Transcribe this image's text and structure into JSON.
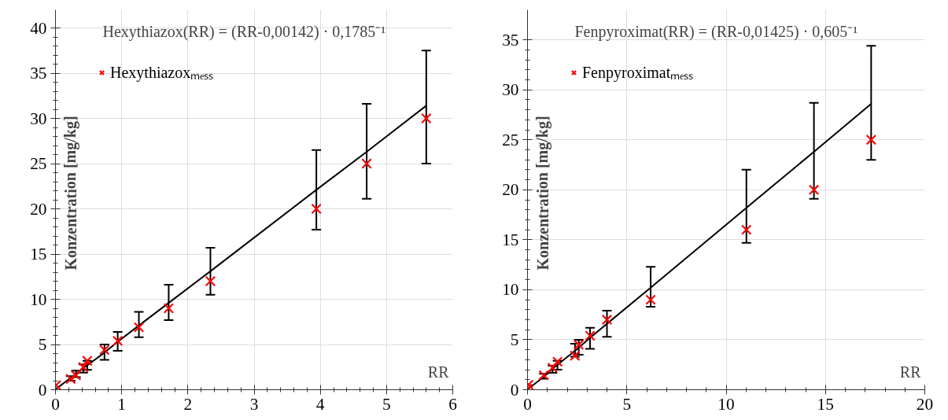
{
  "chart_data": [
    {
      "type": "scatter",
      "xlabel": "RR",
      "ylabel": "Konzentration [mg/kg]",
      "xlim": [
        0,
        6
      ],
      "ylim": [
        0,
        42
      ],
      "xticks": [
        0,
        1,
        2,
        3,
        4,
        5,
        6
      ],
      "yticks": [
        0,
        5,
        10,
        15,
        20,
        25,
        30,
        35,
        40
      ],
      "grid": true,
      "legend": "top left",
      "annotations": [
        "Hexythiazox(RR) = (RR-0,00142)  · 0,1785⁻¹"
      ],
      "series": [
        {
          "type": "line",
          "color": "#000000",
          "marker": "none",
          "x": [
            0.01,
            0.23,
            0.31,
            0.42,
            0.48,
            0.74,
            0.94,
            1.26,
            1.71,
            2.34,
            3.94,
            4.7,
            5.6
          ],
          "values": [
            0.1,
            1.3,
            1.7,
            2.4,
            2.7,
            4.1,
            5.3,
            7.1,
            9.6,
            13.1,
            22.1,
            26.3,
            31.4
          ],
          "errors": [
            null,
            [
              1.0,
              1.5
            ],
            [
              1.4,
              2.1
            ],
            [
              1.9,
              2.8
            ],
            [
              2.2,
              3.2
            ],
            [
              3.3,
              5.0
            ],
            [
              4.3,
              6.4
            ],
            [
              5.8,
              8.6
            ],
            [
              7.7,
              11.6
            ],
            [
              10.5,
              15.7
            ],
            [
              17.7,
              26.5
            ],
            [
              21.1,
              31.6
            ],
            [
              25.0,
              37.5
            ]
          ]
        },
        {
          "name": "Hexythiazoxₘₑₛₛ",
          "color": "#ff0000",
          "marker": "cross",
          "x": [
            0.01,
            0.03,
            0.23,
            0.31,
            0.42,
            0.48,
            0.74,
            0.94,
            1.26,
            1.71,
            2.34,
            3.94,
            4.7,
            5.6
          ],
          "values": [
            0.5,
            null,
            1.2,
            1.6,
            2.5,
            3.2,
            4.4,
            5.4,
            6.9,
            9.0,
            12.0,
            20.0,
            25.0,
            30.0
          ]
        }
      ]
    },
    {
      "type": "scatter",
      "xlabel": "RR",
      "ylabel": "Konzentration [mg/kg]",
      "xlim": [
        0,
        20
      ],
      "ylim": [
        0,
        38
      ],
      "xticks": [
        0,
        5,
        10,
        15,
        20
      ],
      "yticks": [
        0,
        5,
        10,
        15,
        20,
        25,
        30,
        35
      ],
      "grid": true,
      "legend": "top left",
      "annotations": [
        "Fenpyroximat(RR) = (RR-0,01425)  · 0,605⁻¹"
      ],
      "series": [
        {
          "type": "line",
          "color": "#000000",
          "marker": "none",
          "x": [
            0.05,
            0.82,
            1.26,
            1.51,
            2.39,
            2.58,
            3.15,
            4.0,
            6.2,
            11.02,
            14.42,
            17.3
          ],
          "values": [
            0.1,
            1.3,
            2.1,
            2.5,
            3.9,
            4.2,
            5.2,
            6.6,
            10.2,
            18.2,
            23.8,
            28.6
          ],
          "errors": [
            null,
            [
              1.1,
              1.6
            ],
            [
              1.7,
              2.4
            ],
            [
              2.0,
              2.9
            ],
            [
              3.3,
              4.6
            ],
            [
              3.5,
              5.0
            ],
            [
              4.1,
              6.2
            ],
            [
              5.3,
              7.9
            ],
            [
              8.3,
              12.3
            ],
            [
              14.7,
              22.0
            ],
            [
              19.1,
              28.7
            ],
            [
              23.0,
              34.4
            ]
          ]
        },
        {
          "name": "Fenpyroximatₘₑₛₛ",
          "color": "#ff0000",
          "marker": "cross",
          "x": [
            0.0,
            0.05,
            0.82,
            1.26,
            1.51,
            2.39,
            2.58,
            3.15,
            4.0,
            6.2,
            11.02,
            14.42,
            17.3
          ],
          "values": [
            0.1,
            0.5,
            1.45,
            2.2,
            2.8,
            3.4,
            4.5,
            5.4,
            7.0,
            9.0,
            16.0,
            20.0,
            25.0
          ]
        }
      ]
    }
  ]
}
